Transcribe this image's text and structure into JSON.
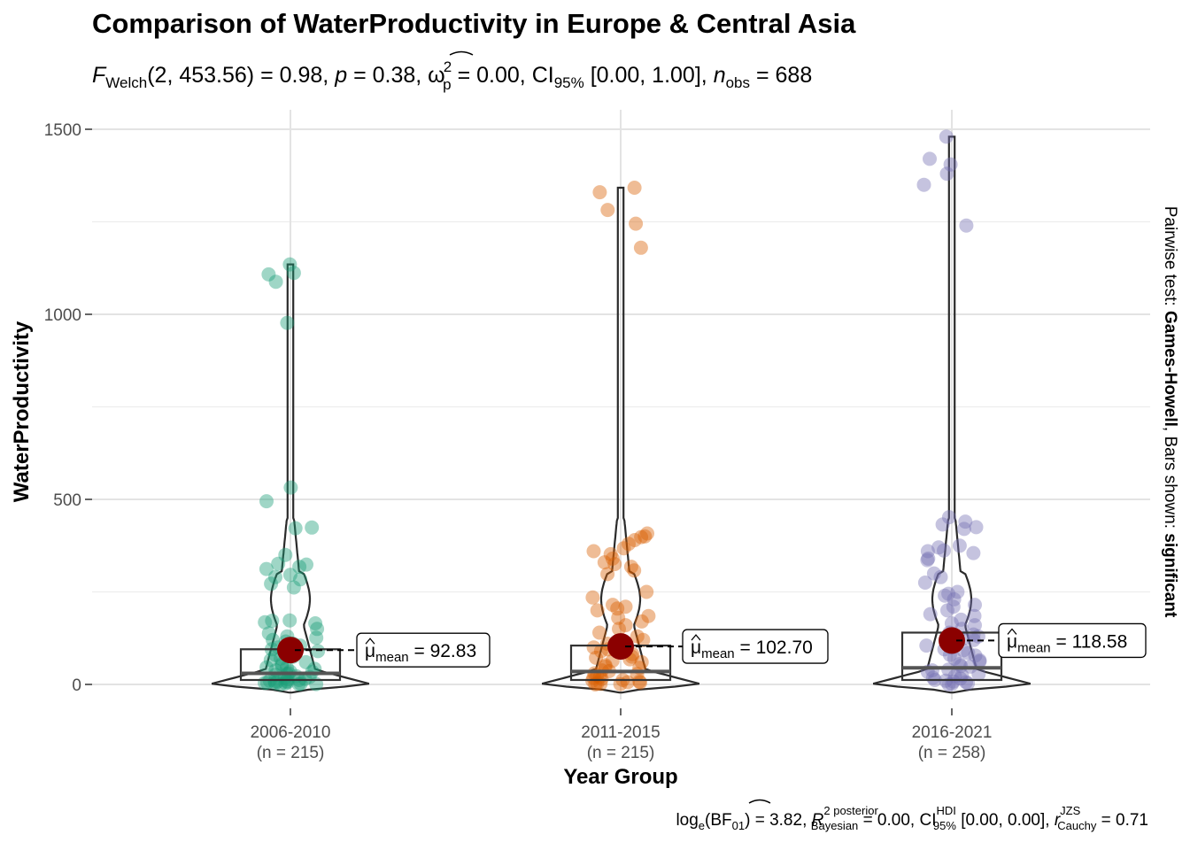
{
  "chart_data": {
    "type": "violin-box-scatter",
    "title": "Comparison of WaterProductivity in Europe & Central Asia",
    "subtitle": {
      "stat": "F",
      "stat_sub": "Welch",
      "df": "(2, 453.56)",
      "stat_value": "= 0.98,",
      "p_label": "p",
      "p_value": "= 0.38,",
      "effect_symbol": "ω",
      "effect_sup": "2",
      "effect_sub": "p",
      "effect_value": "= 0.00, CI",
      "ci_sub": "95%",
      "ci_value": "[0.00, 1.00],",
      "n_label": "n",
      "n_sub": "obs",
      "n_value": "= 688"
    },
    "xlabel": "Year Group",
    "ylabel": "WaterProductivity",
    "ylim": [
      -30,
      1540
    ],
    "yticks": [
      0,
      500,
      1000,
      1500
    ],
    "ytick_labels": [
      "0",
      "500",
      "1000",
      "1500"
    ],
    "categories": [
      "2006-2010",
      "2011-2015",
      "2016-2021"
    ],
    "category_n": [
      "(n = 215)",
      "(n = 215)",
      "(n = 258)"
    ],
    "series": [
      {
        "color": "#1b9e77",
        "mean": 92.83,
        "mean_text": "= 92.83",
        "box": {
          "q1": 12,
          "median": 30,
          "q3": 95
        },
        "points": [
          1135,
          1112,
          1108,
          1088,
          977,
          532,
          495,
          424,
          422,
          350,
          326,
          324,
          318,
          312,
          296,
          290,
          284,
          272,
          262,
          173,
          172,
          168,
          165,
          150,
          138,
          130,
          126,
          120,
          116,
          110,
          105,
          100,
          95,
          90,
          84,
          80,
          75,
          70,
          66,
          60,
          55,
          50,
          46,
          42,
          38,
          34,
          30,
          26,
          22,
          18,
          15,
          12,
          10,
          8,
          6,
          5,
          4,
          3,
          2,
          1,
          1,
          0,
          45,
          35,
          28,
          20,
          14,
          9,
          7,
          3
        ]
      },
      {
        "color": "#d95f02",
        "mean": 102.7,
        "mean_text": "= 102.70",
        "box": {
          "q1": 12,
          "median": 35,
          "q3": 105
        },
        "points": [
          1342,
          1330,
          1282,
          1245,
          1180,
          408,
          400,
          398,
          390,
          380,
          368,
          360,
          352,
          340,
          330,
          325,
          318,
          308,
          298,
          250,
          235,
          215,
          210,
          205,
          200,
          185,
          180,
          170,
          160,
          150,
          140,
          130,
          120,
          110,
          100,
          90,
          82,
          75,
          68,
          60,
          52,
          45,
          38,
          30,
          24,
          18,
          12,
          8,
          5,
          2,
          1,
          0,
          95,
          88,
          72,
          64,
          48,
          36,
          28,
          20,
          15,
          10,
          6,
          3
        ]
      },
      {
        "color": "#7570b3",
        "mean": 118.58,
        "mean_text": "= 118.58",
        "box": {
          "q1": 12,
          "median": 45,
          "q3": 140
        },
        "points": [
          1480,
          1420,
          1405,
          1380,
          1350,
          1240,
          452,
          440,
          432,
          425,
          420,
          375,
          370,
          362,
          360,
          355,
          340,
          336,
          300,
          290,
          275,
          250,
          245,
          240,
          230,
          215,
          210,
          200,
          190,
          185,
          175,
          165,
          160,
          150,
          140,
          130,
          120,
          110,
          100,
          92,
          85,
          78,
          70,
          62,
          55,
          48,
          40,
          34,
          28,
          22,
          16,
          10,
          6,
          3,
          1,
          0,
          135,
          125,
          105,
          95,
          80,
          65,
          50,
          38,
          25,
          18,
          12,
          8
        ]
      }
    ],
    "mean_label_prefix": "μ",
    "mean_label_sub": "mean",
    "caption": {
      "a1": "log",
      "a1_sub": "e",
      "a2": "(BF",
      "a2_sub": "01",
      "a3": ") = 3.82,",
      "r_sym": "R",
      "r_sup": "2 posterior",
      "r_sub": "Bayesian",
      "a4": "= 0.00, CI",
      "ci_sup": "HDI",
      "ci_sub": "95%",
      "a5": "[0.00, 0.00],",
      "rc_sym": "r",
      "rc_sup": "JZS",
      "rc_sub": "Cauchy",
      "a6": "= 0.71"
    },
    "side_label": {
      "prefix": "Pairwise test:",
      "method": "Games-Howell",
      "mid": ", Bars shown:",
      "shown": "significant"
    },
    "grid": true,
    "legend": "none"
  }
}
